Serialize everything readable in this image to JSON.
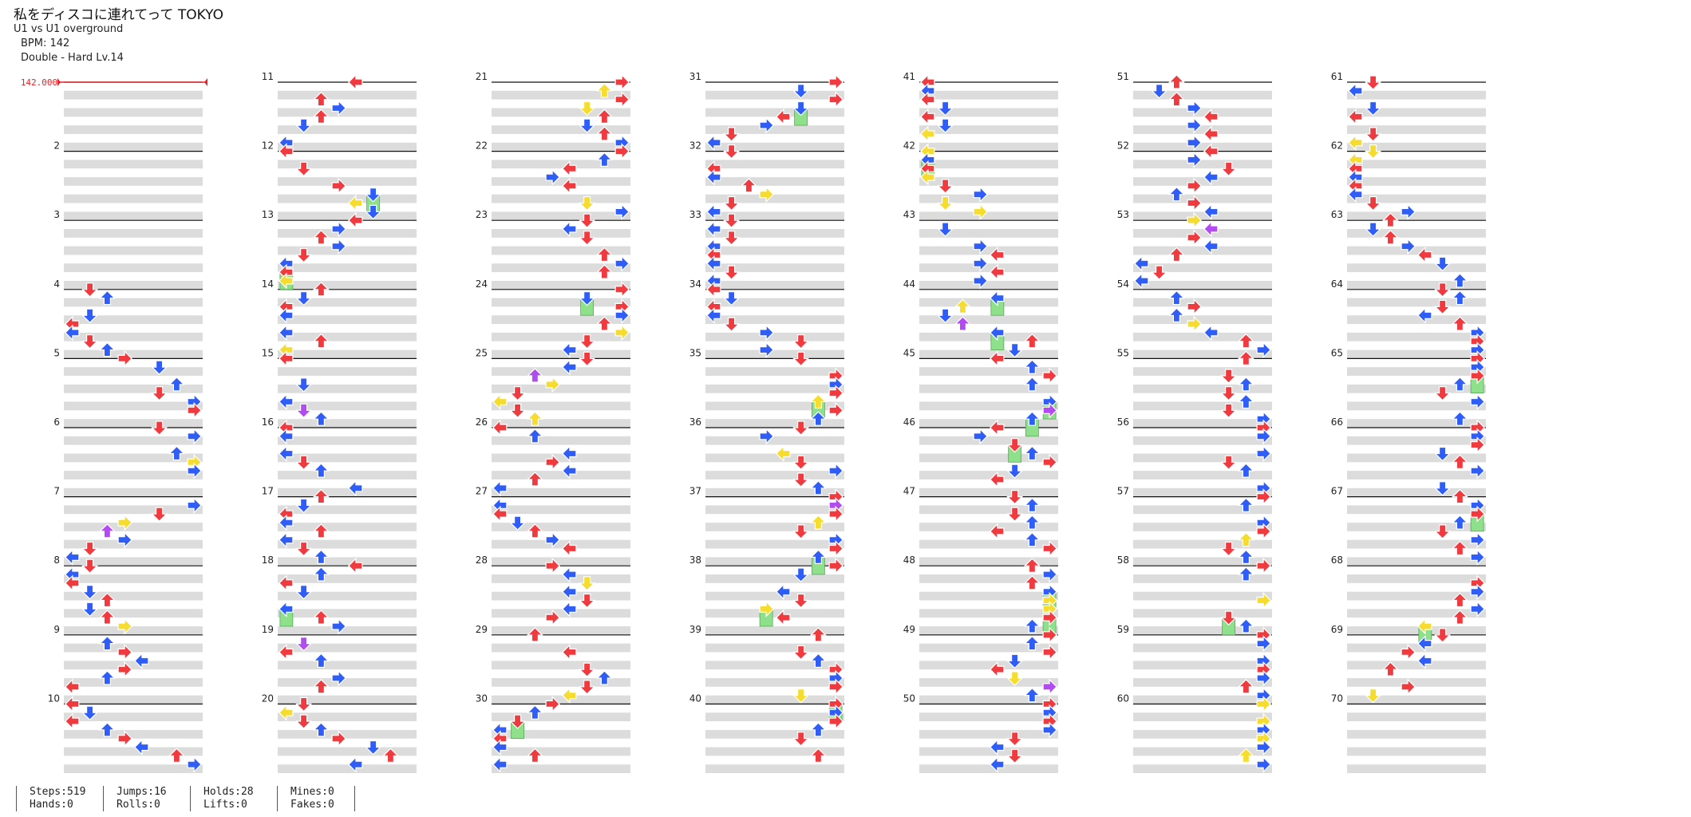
{
  "header": {
    "title": "私をディスコに連れてって TOKYO",
    "artist": "U1 vs U1 overground",
    "bpm_text": "BPM: 142",
    "difficulty_text": "Double - Hard  Lv.14"
  },
  "bpm_marker": {
    "label": "142.000"
  },
  "measures": [
    1,
    2,
    3,
    4,
    5,
    6,
    7,
    8,
    9,
    10,
    11,
    12,
    13,
    14,
    15,
    16,
    17,
    18,
    19,
    20,
    21,
    22,
    23,
    24,
    25,
    26,
    27,
    28,
    29,
    30,
    31,
    32,
    33,
    34,
    35,
    36,
    37,
    38,
    39,
    40,
    41,
    42,
    43,
    44,
    45,
    46,
    47,
    48,
    49,
    50,
    51,
    52,
    53,
    54,
    55,
    56,
    57,
    58,
    59,
    60,
    61,
    62,
    63,
    64,
    65,
    66,
    67,
    68,
    69,
    70
  ],
  "measure_labels_shown": [
    "2",
    "3",
    "4",
    "5",
    "6",
    "7",
    "8",
    "9",
    "10",
    "11",
    "12",
    "13",
    "14",
    "15",
    "16",
    "17",
    "18",
    "19",
    "20",
    "21",
    "22",
    "23",
    "24",
    "25",
    "26",
    "27",
    "28",
    "29",
    "30",
    "31",
    "32",
    "33",
    "34",
    "35",
    "36",
    "37",
    "38",
    "39",
    "40",
    "41",
    "42",
    "43",
    "44",
    "45",
    "46",
    "47",
    "48",
    "49",
    "50",
    "51",
    "52",
    "53",
    "54",
    "55",
    "56",
    "57",
    "58",
    "59",
    "60",
    "61",
    "62",
    "63",
    "64",
    "65",
    "66",
    "67",
    "68",
    "69",
    "70"
  ],
  "colors": {
    "quarter": "#ef3a3f",
    "eighth": "#2f5df5",
    "sixteenth": "#f5dc2e",
    "twelfth": "#b24cf0",
    "hold": "#8fe08a",
    "stripe": "#dcdcdc",
    "bpm": "#e0242a"
  },
  "stats": {
    "steps": "Steps:519",
    "hands": "Hands:0",
    "jumps": "Jumps:16",
    "rolls": "Rolls:0",
    "holds": "Holds:28",
    "lifts": "Lifts:0",
    "mines": "Mines:0",
    "fakes": "Fakes:0"
  }
}
